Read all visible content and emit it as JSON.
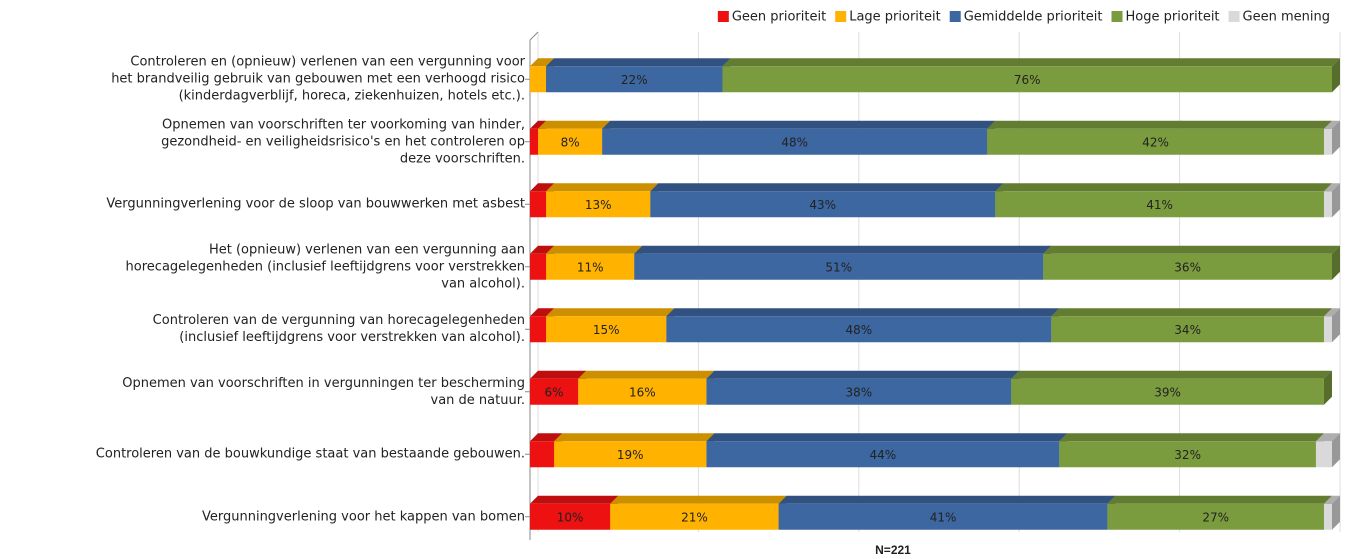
{
  "chart_data": {
    "type": "bar",
    "orientation": "horizontal",
    "stacked": true,
    "three_d": true,
    "categories": [
      [
        "Controleren en (opnieuw) verlenen van een vergunning voor",
        "het brandveilig gebruik van gebouwen met een verhoogd risico",
        "(kinderdagverblijf, horeca, ziekenhuizen, hotels etc.)."
      ],
      [
        "Opnemen van voorschriften ter voorkoming van hinder,",
        "gezondheid- en veiligheidsrisico's en het controleren op",
        "deze voorschriften."
      ],
      [
        "Vergunningverlening voor de sloop van bouwwerken met asbest"
      ],
      [
        "Het (opnieuw) verlenen van een vergunning aan",
        "horecagelegenheden (inclusief leeftijdgrens voor verstrekken",
        "van alcohol)."
      ],
      [
        "Controleren van de vergunning van horecagelegenheden",
        "(inclusief leeftijdgrens voor verstrekken van alcohol)."
      ],
      [
        "Opnemen van voorschriften in vergunningen ter bescherming",
        "van de natuur."
      ],
      [
        "Controleren van de bouwkundige staat van bestaande gebouwen."
      ],
      [
        "Vergunningverlening voor het kappen van bomen"
      ]
    ],
    "series": [
      {
        "name": "Geen prioriteit",
        "color": "#ee1111",
        "values": [
          0,
          1,
          2,
          2,
          2,
          6,
          3,
          10
        ],
        "value_labels": [
          null,
          null,
          null,
          null,
          null,
          "6%",
          null,
          "10%"
        ]
      },
      {
        "name": "Lage prioriteit",
        "color": "#ffb300",
        "values": [
          2,
          8,
          13,
          11,
          15,
          16,
          19,
          21
        ],
        "value_labels": [
          null,
          "8%",
          "13%",
          "11%",
          "15%",
          "16%",
          "19%",
          "21%"
        ]
      },
      {
        "name": "Gemiddelde prioriteit",
        "color": "#3d67a0",
        "values": [
          22,
          48,
          43,
          51,
          48,
          38,
          44,
          41
        ],
        "value_labels": [
          "22%",
          "48%",
          "43%",
          "51%",
          "48%",
          "38%",
          "44%",
          "41%"
        ]
      },
      {
        "name": "Hoge prioriteit",
        "color": "#7b9c3e",
        "values": [
          76,
          42,
          41,
          36,
          34,
          39,
          32,
          27
        ],
        "value_labels": [
          "76%",
          "42%",
          "41%",
          "36%",
          "34%",
          "39%",
          "32%",
          "27%"
        ]
      },
      {
        "name": "Geen mening",
        "color": "#d9d9d9",
        "values": [
          0,
          1,
          1,
          0,
          1,
          0,
          2,
          1
        ],
        "value_labels": [
          null,
          null,
          null,
          null,
          null,
          null,
          null,
          null
        ]
      }
    ],
    "xlim": [
      0,
      100
    ],
    "xticks": [
      0,
      20,
      40,
      60,
      80,
      100
    ],
    "grid": true,
    "legend": "top-right",
    "xlabel": "N=221"
  }
}
